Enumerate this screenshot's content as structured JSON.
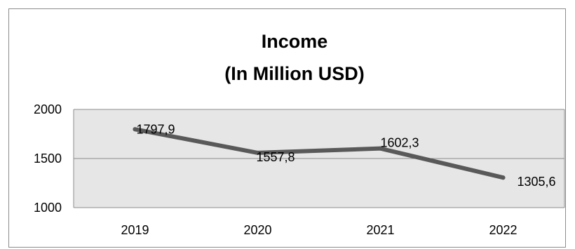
{
  "chart_data": {
    "type": "line",
    "title_lines": [
      "Income",
      "(In Million USD)"
    ],
    "categories": [
      "2019",
      "2020",
      "2021",
      "2022"
    ],
    "series": [
      {
        "values": [
          1797.9,
          1557.8,
          1602.3,
          1305.6
        ]
      }
    ],
    "data_labels": [
      "1797,9",
      "1557,8",
      "1602,3",
      "1305,6"
    ],
    "ylim": [
      1000,
      2000
    ],
    "yticks": [
      1000,
      1500,
      2000
    ],
    "ytick_labels": [
      "1000",
      "1500",
      "2000"
    ],
    "grid": true,
    "legend": "none",
    "colors": {
      "line": "#595959",
      "plot_background": "#e6e6e6",
      "gridline": "#8c8c8c",
      "border": "#8c8c8c"
    }
  }
}
